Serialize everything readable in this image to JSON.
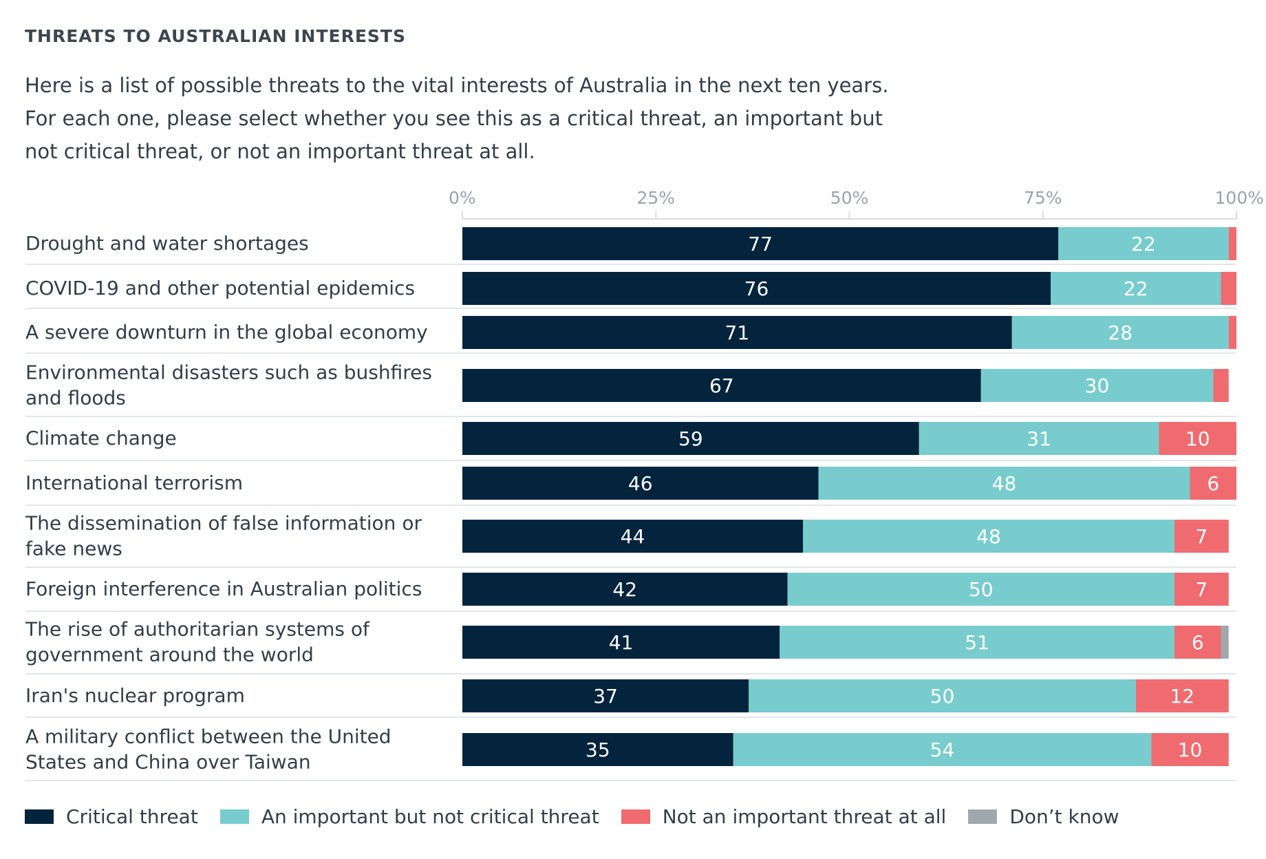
{
  "title": "THREATS TO AUSTRALIAN INTERESTS",
  "subtitle": "Here is a list of possible threats to the vital interests of Australia in the next ten years. For each one, please select whether you see this as a critical threat, an important but not critical threat, or not an important threat at all.",
  "colors": {
    "critical": "#04243d",
    "important": "#78ccce",
    "not_important": "#ef6b70",
    "dont_know": "#a0a8ae",
    "gridline": "#d9dde1",
    "axis_text": "#9aa2a9",
    "label_text": "#333d47"
  },
  "legend": [
    {
      "key": "critical",
      "label": "Critical threat"
    },
    {
      "key": "important",
      "label": "An important but not critical threat"
    },
    {
      "key": "not_important",
      "label": "Not an important threat at all"
    },
    {
      "key": "dont_know",
      "label": "Don’t know"
    }
  ],
  "chart_data": {
    "type": "bar",
    "orientation": "horizontal",
    "stacked": true,
    "xlim": [
      0,
      100
    ],
    "xticks": [
      "0%",
      "25%",
      "50%",
      "75%",
      "100%"
    ],
    "xtick_values": [
      0,
      25,
      50,
      75,
      100
    ],
    "categories": [
      "Drought and water shortages",
      "COVID-19 and other potential epidemics",
      "A severe downturn in the global economy",
      "Environmental disasters such as bushfires and floods",
      "Climate change",
      "International terrorism",
      "The dissemination of false information or fake news",
      "Foreign interference in Australian politics",
      "The rise of authoritarian systems of government around the world",
      "Iran's nuclear program",
      "A military conflict between the United States and China over Taiwan"
    ],
    "series": [
      {
        "name": "Critical threat",
        "key": "critical",
        "values": [
          77,
          76,
          71,
          67,
          59,
          46,
          44,
          42,
          41,
          37,
          35
        ]
      },
      {
        "name": "An important but not critical threat",
        "key": "important",
        "values": [
          22,
          22,
          28,
          30,
          31,
          48,
          48,
          50,
          51,
          50,
          54
        ]
      },
      {
        "name": "Not an important threat at all",
        "key": "not_important",
        "values": [
          1,
          2,
          1,
          2,
          10,
          6,
          7,
          7,
          6,
          12,
          10
        ]
      },
      {
        "name": "Don’t know",
        "key": "dont_know",
        "values": [
          0,
          0,
          0,
          0,
          0,
          0,
          0,
          0,
          1,
          0,
          0
        ]
      }
    ],
    "value_labels": [
      [
        "77",
        "22",
        "",
        ""
      ],
      [
        "76",
        "22",
        "",
        ""
      ],
      [
        "71",
        "28",
        "",
        ""
      ],
      [
        "67",
        "30",
        "",
        ""
      ],
      [
        "59",
        "31",
        "10",
        ""
      ],
      [
        "46",
        "48",
        "6",
        ""
      ],
      [
        "44",
        "48",
        "7",
        ""
      ],
      [
        "42",
        "50",
        "7",
        ""
      ],
      [
        "41",
        "51",
        "6",
        ""
      ],
      [
        "37",
        "50",
        "12",
        ""
      ],
      [
        "35",
        "54",
        "10",
        ""
      ]
    ]
  }
}
